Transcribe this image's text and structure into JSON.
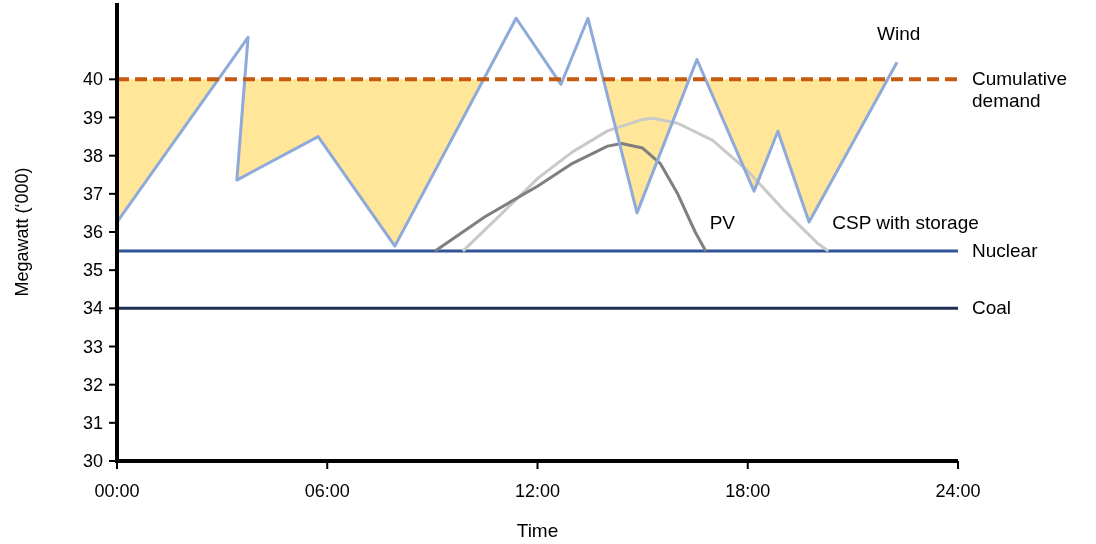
{
  "chart_data": {
    "type": "line",
    "xlabel": "Time",
    "ylabel": "Megawatt (‘000)",
    "xlim": [
      0,
      24
    ],
    "xticks": [
      {
        "value": 0,
        "label": "00:00"
      },
      {
        "value": 6,
        "label": "06:00"
      },
      {
        "value": 12,
        "label": "12:00"
      },
      {
        "value": 18,
        "label": "18:00"
      },
      {
        "value": 24,
        "label": "24:00"
      }
    ],
    "ylim": [
      30,
      42
    ],
    "yticks": [
      30,
      31,
      32,
      33,
      34,
      35,
      36,
      37,
      38,
      39,
      40
    ],
    "grid": false,
    "legend": false,
    "series": [
      {
        "type": "area",
        "color": "#ffe699",
        "x": [
          0,
          2.89,
          3.646,
          3.42,
          5.74,
          7.93,
          10.46,
          12.57,
          12.67,
          12.73,
          13.88,
          14.84,
          16.33,
          16.8,
          18.18,
          18.86,
          19.75,
          21.99,
          0
        ],
        "values": [
          36.26,
          40,
          40,
          37.36,
          38.5,
          35.63,
          40,
          40,
          39.87,
          40,
          40,
          36.5,
          40,
          40,
          37.07,
          38.64,
          36.26,
          40,
          40
        ]
      },
      {
        "name": "Coal",
        "color": "#1f2d50",
        "x": [
          0,
          24
        ],
        "values": [
          34,
          34
        ]
      },
      {
        "name": "Nuclear",
        "color": "#2f5597",
        "x": [
          0,
          24
        ],
        "values": [
          35.5,
          35.5
        ]
      },
      {
        "name": "CSP with storage",
        "color": "#c9c9c9",
        "x": [
          9.87,
          11,
          12,
          13,
          14,
          15,
          15.3,
          16,
          17,
          18,
          19,
          20,
          20.3
        ],
        "values": [
          35.5,
          36.5,
          37.4,
          38.1,
          38.65,
          38.95,
          38.98,
          38.85,
          38.4,
          37.6,
          36.6,
          35.7,
          35.5
        ]
      },
      {
        "name": "PV",
        "color": "#7f7f7f",
        "x": [
          9.08,
          10.5,
          12,
          13,
          14,
          14.4,
          15,
          15.5,
          16,
          16.5,
          16.8
        ],
        "values": [
          35.5,
          36.4,
          37.2,
          37.8,
          38.25,
          38.32,
          38.2,
          37.8,
          37.0,
          36.0,
          35.5
        ]
      },
      {
        "name": "Wind",
        "color": "#8eaadb",
        "x": [
          0,
          3.74,
          3.42,
          5.74,
          7.93,
          11.39,
          12.67,
          13.44,
          14.84,
          16.55,
          18.18,
          18.86,
          19.75,
          22.26
        ],
        "values": [
          36.26,
          41.1,
          37.36,
          38.5,
          35.63,
          41.6,
          39.87,
          41.6,
          36.5,
          40.52,
          37.07,
          38.64,
          36.26,
          40.45
        ]
      },
      {
        "name": "Cumulative demand",
        "color": "#c55a11",
        "line_style": "dashed",
        "x": [
          0,
          24
        ],
        "values": [
          40,
          40
        ]
      }
    ]
  }
}
